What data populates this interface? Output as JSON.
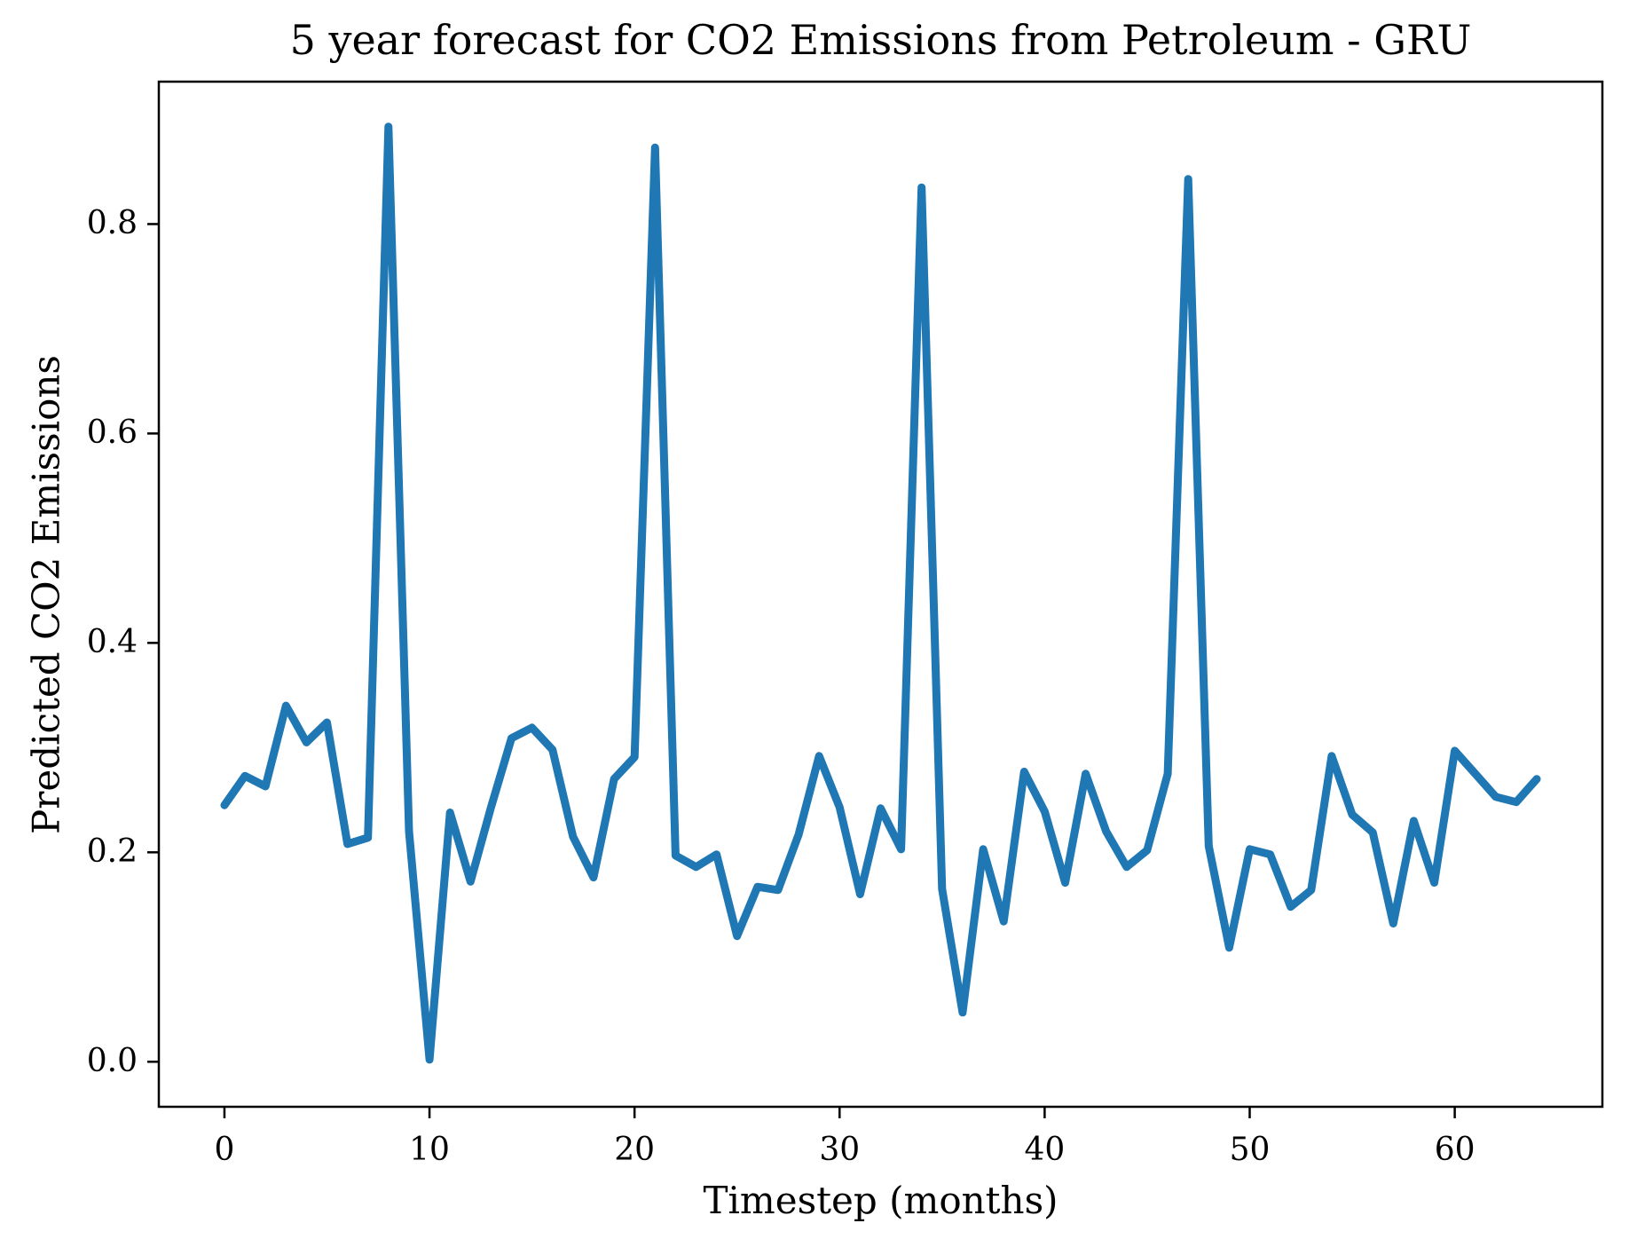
{
  "figure": {
    "title": "5 year forecast for CO2 Emissions from Petroleum - GRU",
    "xlabel": "Timestep (months)",
    "ylabel": "Predicted CO2 Emissions"
  },
  "chart_data": {
    "type": "line",
    "title": "5 year forecast for CO2 Emissions from Petroleum - GRU",
    "xlabel": "Timestep (months)",
    "ylabel": "Predicted CO2 Emissions",
    "grid": false,
    "legend": "none",
    "line_color": "#1f77b4",
    "line_width": 9,
    "xlim": [
      -3.2,
      67.2
    ],
    "ylim": [
      -0.043,
      0.936
    ],
    "xticks": [
      {
        "value": 0,
        "label": "0"
      },
      {
        "value": 10,
        "label": "10"
      },
      {
        "value": 20,
        "label": "20"
      },
      {
        "value": 30,
        "label": "30"
      },
      {
        "value": 40,
        "label": "40"
      },
      {
        "value": 50,
        "label": "50"
      },
      {
        "value": 60,
        "label": "60"
      }
    ],
    "yticks": [
      {
        "value": 0.0,
        "label": "0.0"
      },
      {
        "value": 0.2,
        "label": "0.2"
      },
      {
        "value": 0.4,
        "label": "0.4"
      },
      {
        "value": 0.6,
        "label": "0.6"
      },
      {
        "value": 0.8,
        "label": "0.8"
      }
    ],
    "x": [
      0,
      1,
      2,
      3,
      4,
      5,
      6,
      7,
      8,
      9,
      10,
      11,
      12,
      13,
      14,
      15,
      16,
      17,
      18,
      19,
      20,
      21,
      22,
      23,
      24,
      25,
      26,
      27,
      28,
      29,
      30,
      31,
      32,
      33,
      34,
      35,
      36,
      37,
      38,
      39,
      40,
      41,
      42,
      43,
      44,
      45,
      46,
      47,
      48,
      49,
      50,
      51,
      52,
      53,
      54,
      55,
      56,
      57,
      58,
      59,
      60,
      61,
      62,
      63,
      64
    ],
    "values": [
      0.245,
      0.273,
      0.263,
      0.34,
      0.305,
      0.324,
      0.208,
      0.214,
      0.893,
      0.22,
      0.002,
      0.238,
      0.172,
      0.243,
      0.309,
      0.319,
      0.298,
      0.215,
      0.176,
      0.27,
      0.291,
      0.873,
      0.197,
      0.186,
      0.198,
      0.12,
      0.167,
      0.164,
      0.217,
      0.292,
      0.243,
      0.16,
      0.242,
      0.203,
      0.835,
      0.165,
      0.047,
      0.203,
      0.134,
      0.277,
      0.239,
      0.171,
      0.275,
      0.22,
      0.186,
      0.202,
      0.275,
      0.843,
      0.206,
      0.109,
      0.203,
      0.198,
      0.148,
      0.164,
      0.292,
      0.236,
      0.219,
      0.132,
      0.23,
      0.171,
      0.297,
      0.275,
      0.253,
      0.248,
      0.27
    ]
  }
}
